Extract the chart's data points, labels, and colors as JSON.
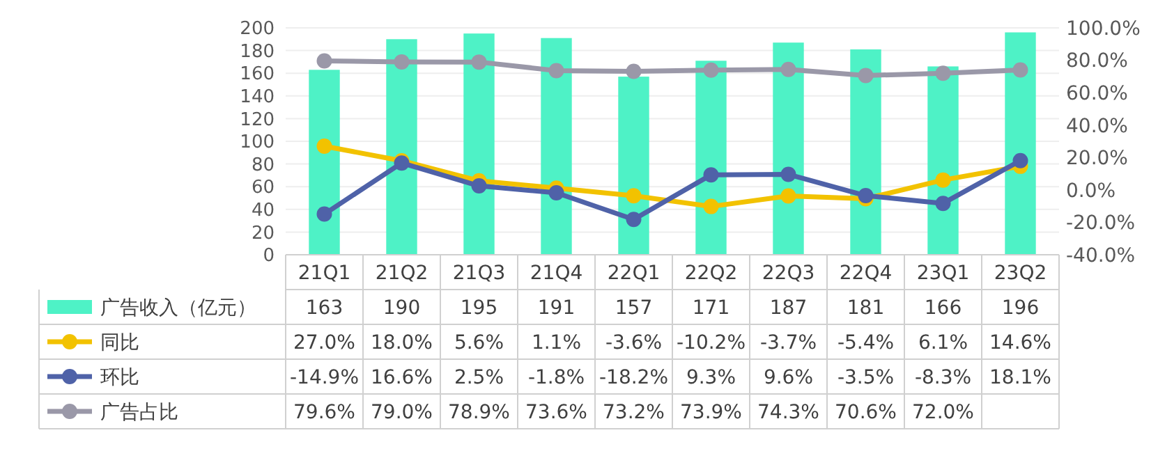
{
  "chart_data": {
    "type": "bar",
    "categories": [
      "21Q1",
      "21Q2",
      "21Q3",
      "21Q4",
      "22Q1",
      "22Q2",
      "22Q3",
      "22Q4",
      "23Q1",
      "23Q2"
    ],
    "series": [
      {
        "name": "广告收入（亿元）",
        "color": "#4ef2c6",
        "values": [
          163,
          190,
          195,
          191,
          157,
          171,
          187,
          181,
          166,
          196
        ],
        "value_labels": [
          "163",
          "190",
          "195",
          "191",
          "157",
          "171",
          "187",
          "181",
          "166",
          "196"
        ]
      },
      {
        "name": "同比",
        "type": "line",
        "axis": "y2",
        "color": "#f2c200",
        "values": [
          27.0,
          18.0,
          5.6,
          1.1,
          -3.6,
          -10.2,
          -3.7,
          -5.4,
          6.1,
          14.6
        ],
        "value_labels": [
          "27.0%",
          "18.0%",
          "5.6%",
          "1.1%",
          "-3.6%",
          "-10.2%",
          "-3.7%",
          "-5.4%",
          "6.1%",
          "14.6%"
        ]
      },
      {
        "name": "环比",
        "type": "line",
        "axis": "y2",
        "color": "#4f62a8",
        "values": [
          -14.9,
          16.6,
          2.5,
          -1.8,
          -18.2,
          9.3,
          9.6,
          -3.5,
          -8.3,
          18.1
        ],
        "value_labels": [
          "-14.9%",
          "16.6%",
          "2.5%",
          "-1.8%",
          "-18.2%",
          "9.3%",
          "9.6%",
          "-3.5%",
          "-8.3%",
          "18.1%"
        ]
      },
      {
        "name": "广告占比",
        "type": "line",
        "axis": "y2",
        "color": "#9a98a8",
        "values": [
          79.6,
          79.0,
          78.9,
          73.6,
          73.2,
          73.9,
          74.3,
          70.6,
          72.0,
          74.0
        ],
        "value_labels": [
          "79.6%",
          "79.0%",
          "78.9%",
          "73.6%",
          "73.2%",
          "73.9%",
          "74.3%",
          "70.6%",
          "72.0%",
          null
        ]
      }
    ],
    "ylim": [
      0,
      200
    ],
    "yticks": [
      0,
      20,
      40,
      60,
      80,
      100,
      120,
      140,
      160,
      180,
      200
    ],
    "y2lim": [
      -40,
      100
    ],
    "y2ticks": [
      {
        "value": -40,
        "label": "-40.0%"
      },
      {
        "value": -20,
        "label": "-20.0%"
      },
      {
        "value": 0,
        "label": "0.0%"
      },
      {
        "value": 20,
        "label": "20.0%"
      },
      {
        "value": 40,
        "label": "40.0%"
      },
      {
        "value": 60,
        "label": "60.0%"
      },
      {
        "value": 80,
        "label": "80.0%"
      },
      {
        "value": 100,
        "label": "100.0%"
      }
    ],
    "grid": "y",
    "legend": "left",
    "marker": "circle",
    "line_style": "solid"
  }
}
